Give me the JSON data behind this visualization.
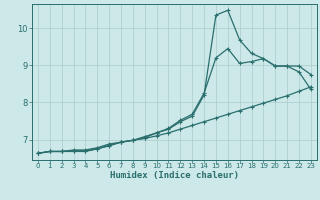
{
  "xlabel": "Humidex (Indice chaleur)",
  "bg_color": "#cce8e8",
  "grid_color": "#aacccc",
  "line_color": "#2a6e6e",
  "xlim": [
    -0.5,
    23.5
  ],
  "ylim": [
    6.45,
    10.65
  ],
  "xticks": [
    0,
    1,
    2,
    3,
    4,
    5,
    6,
    7,
    8,
    9,
    10,
    11,
    12,
    13,
    14,
    15,
    16,
    17,
    18,
    19,
    20,
    21,
    22,
    23
  ],
  "yticks": [
    7,
    8,
    9,
    10
  ],
  "line1_x": [
    0,
    1,
    2,
    3,
    4,
    5,
    6,
    7,
    8,
    9,
    10,
    11,
    12,
    13,
    14,
    15,
    16,
    17,
    18,
    19,
    20,
    21,
    22,
    23
  ],
  "line1_y": [
    6.63,
    6.68,
    6.68,
    6.68,
    6.68,
    6.75,
    6.83,
    6.93,
    6.98,
    7.03,
    7.1,
    7.18,
    7.28,
    7.38,
    7.48,
    7.58,
    7.68,
    7.78,
    7.88,
    7.98,
    8.08,
    8.18,
    8.3,
    8.42
  ],
  "line2_x": [
    0,
    1,
    2,
    3,
    4,
    5,
    6,
    7,
    8,
    9,
    10,
    11,
    12,
    13,
    14,
    15,
    16,
    17,
    18,
    19,
    20,
    21,
    22,
    23
  ],
  "line2_y": [
    6.63,
    6.68,
    6.68,
    6.7,
    6.7,
    6.75,
    6.85,
    6.93,
    6.98,
    7.05,
    7.18,
    7.3,
    7.52,
    7.68,
    8.25,
    9.2,
    9.45,
    9.05,
    9.1,
    9.18,
    8.98,
    8.98,
    8.82,
    8.35
  ],
  "line3_x": [
    0,
    1,
    2,
    3,
    4,
    5,
    6,
    7,
    8,
    9,
    10,
    11,
    12,
    13,
    14,
    15,
    16,
    17,
    18,
    19,
    20,
    21,
    22,
    23
  ],
  "line3_y": [
    6.63,
    6.68,
    6.68,
    6.72,
    6.72,
    6.78,
    6.88,
    6.93,
    6.98,
    7.08,
    7.18,
    7.28,
    7.48,
    7.63,
    8.2,
    10.35,
    10.48,
    9.68,
    9.32,
    9.18,
    8.98,
    8.98,
    8.98,
    8.75
  ]
}
